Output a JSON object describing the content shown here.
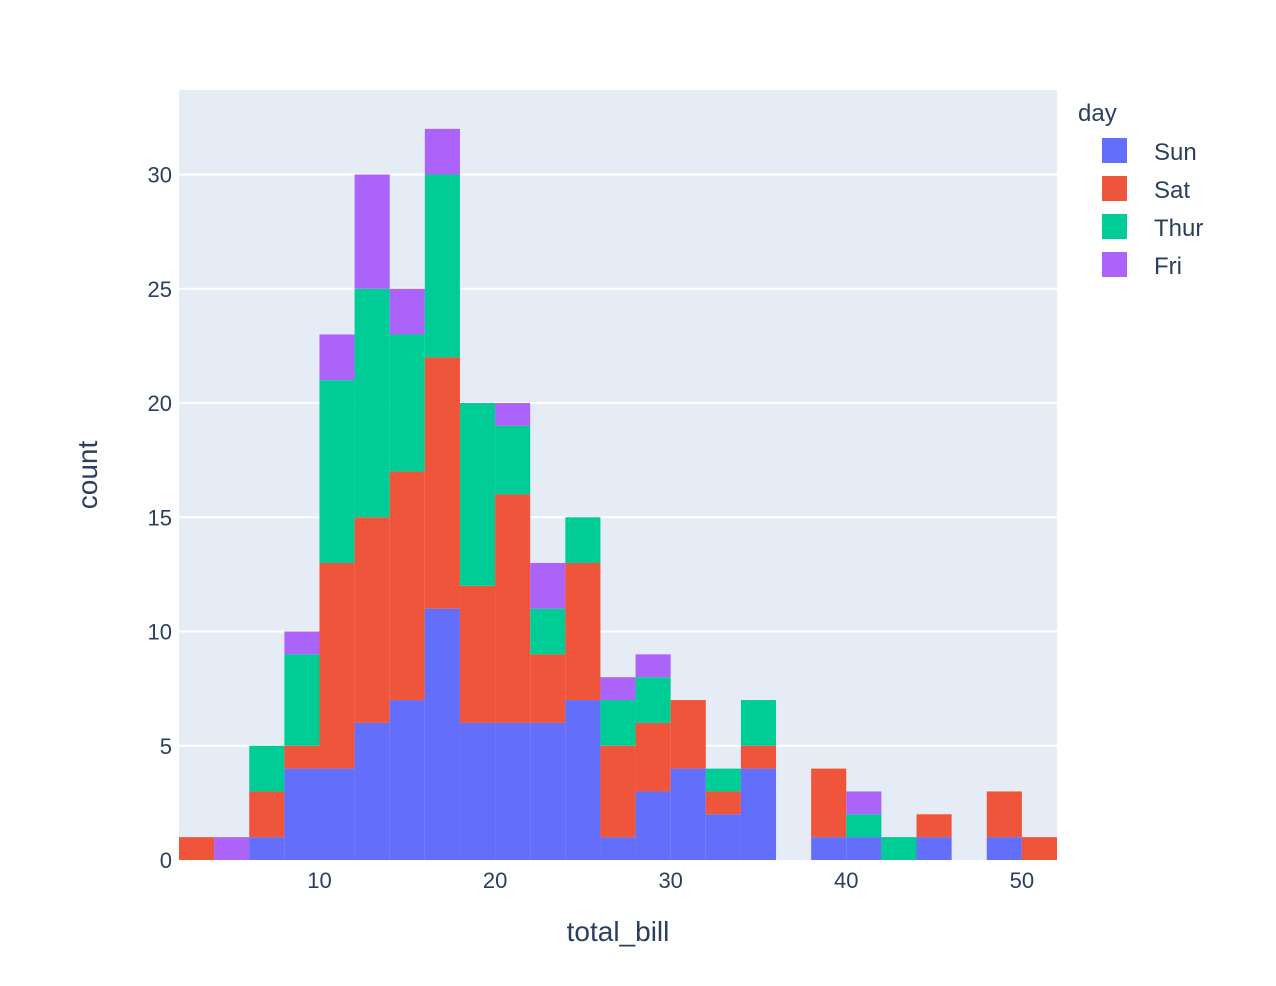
{
  "chart_data": {
    "type": "bar",
    "stacked": true,
    "histogram": true,
    "x_bin_start": 2,
    "x_bin_width": 2,
    "x": [
      3,
      5,
      7,
      9,
      11,
      13,
      15,
      17,
      19,
      21,
      23,
      25,
      27,
      29,
      31,
      33,
      35,
      37,
      39,
      41,
      43,
      45,
      47,
      49,
      51
    ],
    "series": [
      {
        "name": "Sun",
        "color": "#636efa",
        "values": [
          0,
          0,
          1,
          4,
          4,
          6,
          7,
          11,
          6,
          6,
          6,
          7,
          1,
          3,
          4,
          2,
          4,
          0,
          1,
          1,
          0,
          1,
          0,
          1,
          0
        ]
      },
      {
        "name": "Sat",
        "color": "#ef553b",
        "values": [
          1,
          0,
          2,
          1,
          9,
          9,
          10,
          11,
          6,
          10,
          3,
          6,
          4,
          3,
          3,
          1,
          1,
          0,
          3,
          0,
          0,
          1,
          0,
          2,
          1
        ]
      },
      {
        "name": "Thur",
        "color": "#00cc96",
        "values": [
          0,
          0,
          2,
          4,
          8,
          10,
          6,
          8,
          8,
          3,
          2,
          2,
          2,
          2,
          0,
          1,
          2,
          0,
          0,
          1,
          1,
          0,
          0,
          0,
          0
        ]
      },
      {
        "name": "Fri",
        "color": "#ab63fa",
        "values": [
          0,
          1,
          0,
          1,
          2,
          5,
          2,
          2,
          0,
          1,
          2,
          0,
          1,
          1,
          0,
          0,
          0,
          0,
          0,
          1,
          0,
          0,
          0,
          0,
          0
        ]
      }
    ],
    "xlabel": "total_bill",
    "ylabel": "count",
    "xlim": [
      2,
      52
    ],
    "ylim": [
      0,
      33.7
    ],
    "x_ticks": [
      10,
      20,
      30,
      40,
      50
    ],
    "y_ticks": [
      0,
      5,
      10,
      15,
      20,
      25,
      30
    ],
    "legend_title": "day",
    "legend_position": "right",
    "grid": true,
    "plot_background": "#e5ecf6"
  }
}
